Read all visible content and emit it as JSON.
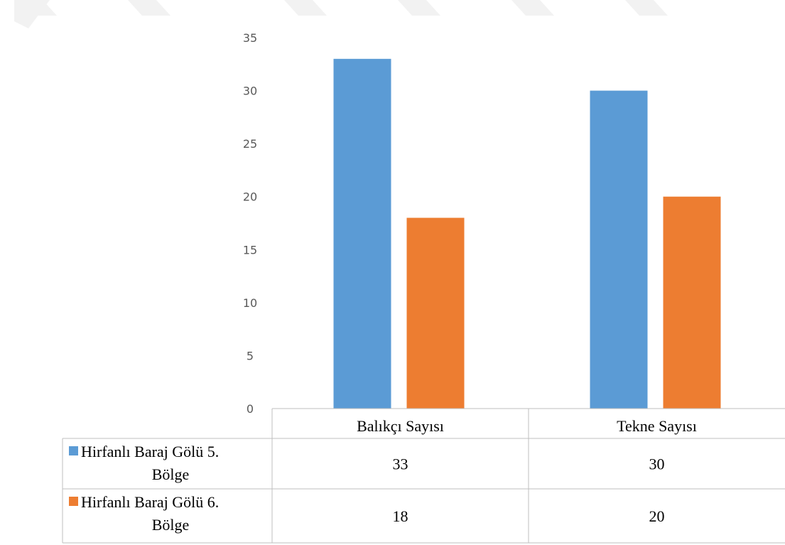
{
  "chart_data": {
    "type": "bar",
    "categories": [
      "Balıkçı Sayısı",
      "Tekne Sayısı"
    ],
    "series": [
      {
        "name": "Hirfanlı Baraj Gölü 5. Bölge",
        "name_lines": [
          "Hirfanlı Baraj Gölü 5.",
          "Bölge"
        ],
        "values": [
          33,
          30
        ],
        "color": "#5b9bd5"
      },
      {
        "name": "Hirfanlı Baraj Gölü 6. Bölge",
        "name_lines": [
          "Hirfanlı Baraj Gölü 6.",
          "Bölge"
        ],
        "values": [
          18,
          20
        ],
        "color": "#ed7d31"
      }
    ],
    "ylim": [
      0,
      35
    ],
    "yticks": [
      0,
      5,
      10,
      15,
      20,
      25,
      30,
      35
    ],
    "grid": false,
    "legend": "data-table",
    "data_table": true
  },
  "decoration": {
    "chevron_color": "#f2f2f2"
  }
}
